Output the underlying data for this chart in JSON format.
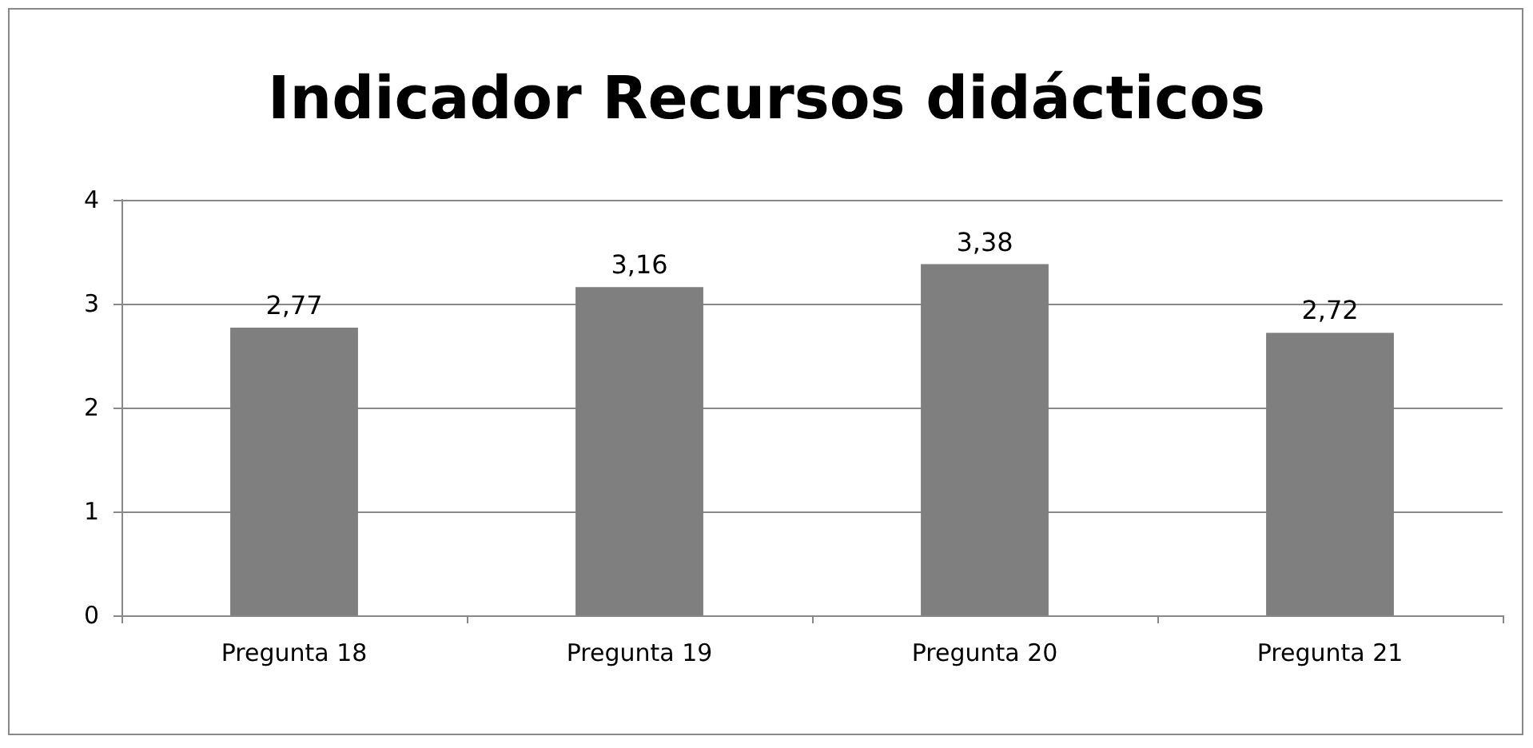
{
  "chart_data": {
    "type": "bar",
    "title": "Indicador Recursos didácticos",
    "categories": [
      "Pregunta 18",
      "Pregunta 19",
      "Pregunta 20",
      "Pregunta 21"
    ],
    "values": [
      2.77,
      3.16,
      3.38,
      2.72
    ],
    "value_labels": [
      "2,77",
      "3,16",
      "3,38",
      "2,72"
    ],
    "color": "#7f7f7f",
    "ylim": [
      0,
      4
    ],
    "yticks": [
      0,
      1,
      2,
      3,
      4
    ],
    "grid": "y"
  }
}
